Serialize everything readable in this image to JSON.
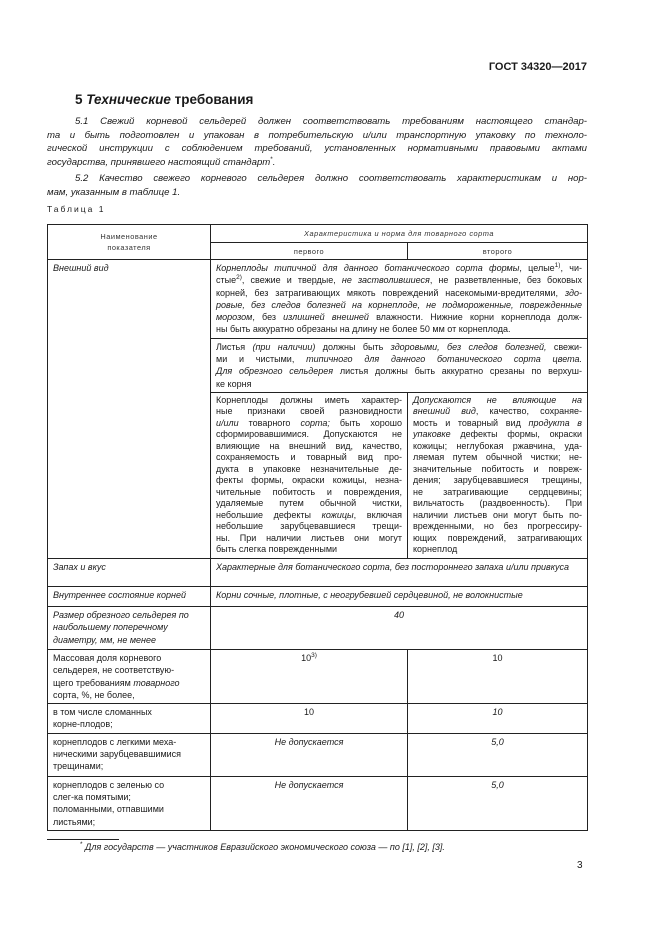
{
  "header": {
    "doc_code": "ГОСТ 34320—2017"
  },
  "section": {
    "number": "5",
    "title_italic": "Технические",
    "title_rest": " требования"
  },
  "paragraphs": {
    "p51": [
      [
        {
          "t": "5.1 Свежий корневой сельдерей должен соответствовать требованиям настоящего стандар-"
        }
      ],
      [
        {
          "t": "та и быть подготовлен и упакован в потребительскую и/или транспортную упаковку по техноло-"
        }
      ],
      [
        {
          "t": "гической инструкции с соблюдением требований, установленных нормативными правовыми актами"
        }
      ],
      [
        {
          "t": "государства, принявшего настоящий стандарт"
        },
        {
          "t": "*",
          "s": true
        },
        {
          "t": "."
        }
      ]
    ],
    "p52": [
      [
        {
          "t": "5.2 Качество свежего корневого сельдерея должно соответствовать характеристикам и нор-"
        }
      ],
      [
        {
          "t": "мам, указанным в таблице 1."
        }
      ]
    ]
  },
  "table": {
    "caption": "Таблица 1",
    "head": {
      "indicator": "Наименование показателя",
      "norm": "Характеристика и норма для товарного сорта",
      "first": "первого",
      "second": "второго"
    },
    "appearance": {
      "label": "Внешний вид",
      "common": [
        [
          {
            "t": "Корнеплоды типичной для данного ботанического сорта формы",
            "i": true
          },
          {
            "t": ", целые"
          },
          {
            "t": "1)",
            "s": true
          },
          {
            "t": ", чи-"
          }
        ],
        [
          {
            "t": "стые"
          },
          {
            "t": "2)",
            "s": true
          },
          {
            "t": ", свежие и твердые, "
          },
          {
            "t": "не застволившиеся",
            "i": true
          },
          {
            "t": ", не разветвленные, без боковых"
          }
        ],
        [
          {
            "t": "корней, без затрагивающих мякоть повреждений насекомыми-вредителями, "
          },
          {
            "t": "здо-",
            "i": true
          }
        ],
        [
          {
            "t": "ровые, без следов болезней на корнеплоде, не подмороженные, поврежденные",
            "i": true
          }
        ],
        [
          {
            "t": "морозом",
            "i": true
          },
          {
            "t": ", без "
          },
          {
            "t": "излишней внешней",
            "i": true
          },
          {
            "t": " влажности. Нижние корни корнеплода долж-"
          }
        ],
        [
          {
            "t": "ны быть аккуратно обрезаны на длину не более 50 мм от корнеплода."
          }
        ]
      ],
      "leaves": [
        [
          {
            "t": "Листья "
          },
          {
            "t": "(при наличии)",
            "i": true
          },
          {
            "t": " должны быть "
          },
          {
            "t": "здоровыми, без следов болезней,",
            "i": true
          },
          {
            "t": " свежи-"
          }
        ],
        [
          {
            "t": "ми и чистыми, "
          },
          {
            "t": "типичного для данного ботанического сорта цвета.",
            "i": true
          }
        ],
        [
          {
            "t": "Для обрезного сельдерея",
            "i": true
          },
          {
            "t": " листья должны быть аккуратно срезаны по верхуш-"
          }
        ],
        [
          {
            "t": "ке корня"
          }
        ]
      ],
      "first": [
        [
          {
            "t": "Корнеплоды должны иметь характер-"
          }
        ],
        [
          {
            "t": "ные признаки своей разновидности"
          }
        ],
        [
          {
            "t": "и/или",
            "i": true
          },
          {
            "t": " товарного "
          },
          {
            "t": "сорта;",
            "i": true
          },
          {
            "t": " быть хорошо"
          }
        ],
        [
          {
            "t": "сформировавшимися. Допускаются не"
          }
        ],
        [
          {
            "t": "влияющие на внешний вид, качество,"
          }
        ],
        [
          {
            "t": "сохраняемость и товарный вид про-"
          }
        ],
        [
          {
            "t": "дукта в упаковке незначительные де-"
          }
        ],
        [
          {
            "t": "фекты формы, окраски кожицы, незна-"
          }
        ],
        [
          {
            "t": "чительные побитость и повреждения,"
          }
        ],
        [
          {
            "t": "удаляемые путем обычной чистки,"
          }
        ],
        [
          {
            "t": "небольшие дефекты "
          },
          {
            "t": "кожицы",
            "i": true
          },
          {
            "t": ", включая"
          }
        ],
        [
          {
            "t": "небольшие зарубцевавшиеся трещи-"
          }
        ],
        [
          {
            "t": "ны. При наличии листьев они могут"
          }
        ],
        [
          {
            "t": "быть слегка поврежденными"
          }
        ]
      ],
      "second": [
        [
          {
            "t": "Допускаются не влияющие на",
            "i": true
          }
        ],
        [
          {
            "t": "внешний вид",
            "i": true
          },
          {
            "t": ", качество, сохраняе-"
          }
        ],
        [
          {
            "t": "мость и товарный вид "
          },
          {
            "t": "продукта в",
            "i": true
          }
        ],
        [
          {
            "t": "упаковке",
            "i": true
          },
          {
            "t": " дефекты формы, окраски"
          }
        ],
        [
          {
            "t": "кожицы; неглубокая ржавчина, уда-"
          }
        ],
        [
          {
            "t": "ляемая путем обычной чистки; не-"
          }
        ],
        [
          {
            "t": "значительные побитость и повреж-"
          }
        ],
        [
          {
            "t": "дения; зарубцевавшиеся трещины,"
          }
        ],
        [
          {
            "t": "не затрагивающие сердцевины;"
          }
        ],
        [
          {
            "t": "вильчатость (раздвоенность). При"
          }
        ],
        [
          {
            "t": "наличии листьев они могут быть по-"
          }
        ],
        [
          {
            "t": "врежденными, но без прогрессиру-"
          }
        ],
        [
          {
            "t": "ющих повреждений, затрагивающих"
          }
        ],
        [
          {
            "t": "корнеплод"
          }
        ]
      ]
    },
    "smell": {
      "label": "Запах и вкус",
      "value": "Характерные для ботанического сорта, без постороннего запаха и/или привкуса"
    },
    "inner": {
      "label": "Внутреннее состояние корней",
      "value": "Корни сочные, плотные, с неогрубевшей сердцевиной, не волокнистые"
    },
    "size": {
      "label": "Размер обрезного сельдерея по наибольшему поперечному диаметру, мм, не менее",
      "value": "40"
    },
    "mass": {
      "label": "Массовая доля корневого сельдерея, не соответствую-щего требованиям товарного сорта, %, не более,",
      "label_parts": [
        "Массовая доля корневого сельдерея, не соответствую-щего требованиям ",
        "товарного",
        " сорта, %, не более,"
      ],
      "first": "10",
      "first_note": "3)",
      "second": "10"
    },
    "broken": {
      "label": "в том числе сломанных корне-плодов;",
      "first": "10",
      "second": "10"
    },
    "cracks": {
      "label": "корнеплодов с легкими меха-ническими зарубцевавшимися трещинами;",
      "first": "Не допускается",
      "second": "5,0"
    },
    "green": {
      "label": "корнеплодов с зеленью со слег-ка помятыми; поломанными, отпавшими листьями;",
      "first": "Не допускается",
      "second": "5,0"
    }
  },
  "footnote": {
    "mark": "*",
    "text": "Для государств — участников Евразийского экономического союза — по [1], [2], [3]."
  },
  "page_number": "3"
}
